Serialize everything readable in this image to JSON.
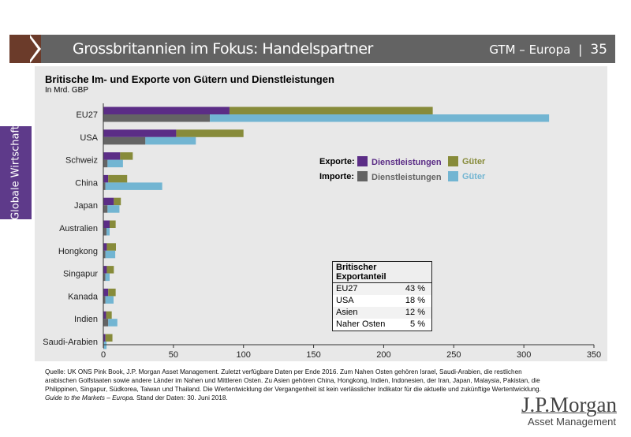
{
  "header": {
    "title": "Grossbritannien im Fokus: Handelspartner",
    "section": "GTM – Europa",
    "page": "35"
  },
  "side_tab": "Globale Wirtschaft",
  "chart_data": {
    "type": "bar",
    "orientation": "horizontal",
    "stacked": true,
    "title": "Britische Im- und Exporte von Gütern und Dienstleistungen",
    "subtitle": "In Mrd. GBP",
    "xlim": [
      0,
      350
    ],
    "xticks": [
      0,
      50,
      100,
      150,
      200,
      250,
      300,
      350
    ],
    "categories": [
      "EU27",
      "USA",
      "Schweiz",
      "China",
      "Japan",
      "Australien",
      "Hongkong",
      "Singapur",
      "Kanada",
      "Indien",
      "Saudi-Arabien"
    ],
    "series": [
      {
        "name": "Exporte Dienstleistungen",
        "group": "export",
        "color": "#5b2d86",
        "values": [
          90,
          52,
          12,
          3.5,
          7.5,
          4.5,
          2.5,
          2.5,
          3.5,
          2,
          1.5
        ]
      },
      {
        "name": "Exporte Güter",
        "group": "export",
        "color": "#878b3a",
        "values": [
          145,
          48,
          9,
          13.5,
          5,
          4.3,
          6.5,
          5,
          5.3,
          4,
          5
        ]
      },
      {
        "name": "Importe Dienstleistungen",
        "group": "import",
        "color": "#646464",
        "values": [
          76,
          30,
          3,
          1.5,
          3,
          2.3,
          1.5,
          1.5,
          1.5,
          3.5,
          0.5
        ]
      },
      {
        "name": "Importe Güter",
        "group": "import",
        "color": "#72b5d2",
        "values": [
          242,
          36,
          11,
          40.5,
          8.5,
          2.2,
          7,
          3,
          5.8,
          6.5,
          1.8
        ]
      }
    ],
    "legend": {
      "placement": "center-right",
      "export_label": "Exporte:",
      "import_label": "Importe:",
      "services": "Dienstleistungen",
      "goods": "Güter"
    }
  },
  "export_share": {
    "title": "Britischer Exportanteil",
    "rows": [
      {
        "label": "EU27",
        "value": "43 %"
      },
      {
        "label": "USA",
        "value": "18 %"
      },
      {
        "label": "Asien",
        "value": "12 %"
      },
      {
        "label": "Naher Osten",
        "value": "5 %"
      }
    ]
  },
  "footnote": {
    "text": "Quelle: UK ONS Pink Book, J.P. Morgan Asset Management. Zuletzt verfügbare Daten per Ende 2016. Zum Nahen Osten gehören Israel, Saudi-Arabien, die restlichen arabischen Golfstaaten sowie andere Länder im Nahen und Mittleren Osten. Zu Asien gehören China, Hongkong, Indien, Indonesien, der Iran, Japan, Malaysia, Pakistan, die Philippinen, Singapur, Südkorea, Taiwan und Thailand. Die Wertentwicklung der Vergangenheit ist kein verlässlicher Indikator für die aktuelle und zukünftige Wertentwicklung. ",
    "italic": "Guide to the Markets – Europa.",
    "end": " Stand der Daten: 30. Juni 2018."
  },
  "logo": {
    "name": "J.P.Morgan",
    "sub": "Asset Management"
  }
}
